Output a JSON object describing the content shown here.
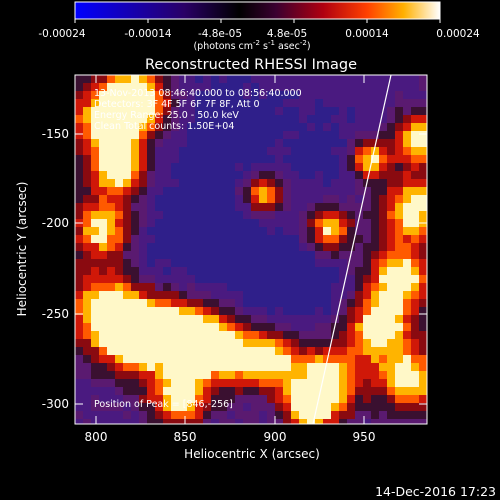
{
  "colorbar": {
    "ticks": [
      "-0.00024",
      "-0.00014",
      "-4.8e-05",
      "4.8e-05",
      "0.00014",
      "0.00024"
    ],
    "units": "(photons cm",
    "units_sup1": "-2",
    "units_mid": " s",
    "units_sup2": "-1",
    "units_end": " asec",
    "units_sup3": "-2",
    "units_close": ")"
  },
  "image": {
    "title": "Reconstructed RHESSI Image",
    "info_lines": [
      "13-Nov-2013 08:46:40.000 to 08:56:40.000",
      "Detectors: 3F 4F 5F 6F 7F 8F, Att 0",
      "Energy Range: 25.0 - 50.0 keV",
      "Clean     Total counts: 1.50E+04"
    ],
    "peak_text": "Position of Peak = [846,-256]",
    "x_axis_label": "Heliocentric X (arcsec)",
    "y_axis_label": "Heliocentric Y (arcsec)",
    "x_ticks": [
      "800",
      "850",
      "900",
      "950"
    ],
    "y_ticks": [
      "-150",
      "-200",
      "-250",
      "-300"
    ],
    "timestamp": "14-Dec-2016 17:23"
  }
}
